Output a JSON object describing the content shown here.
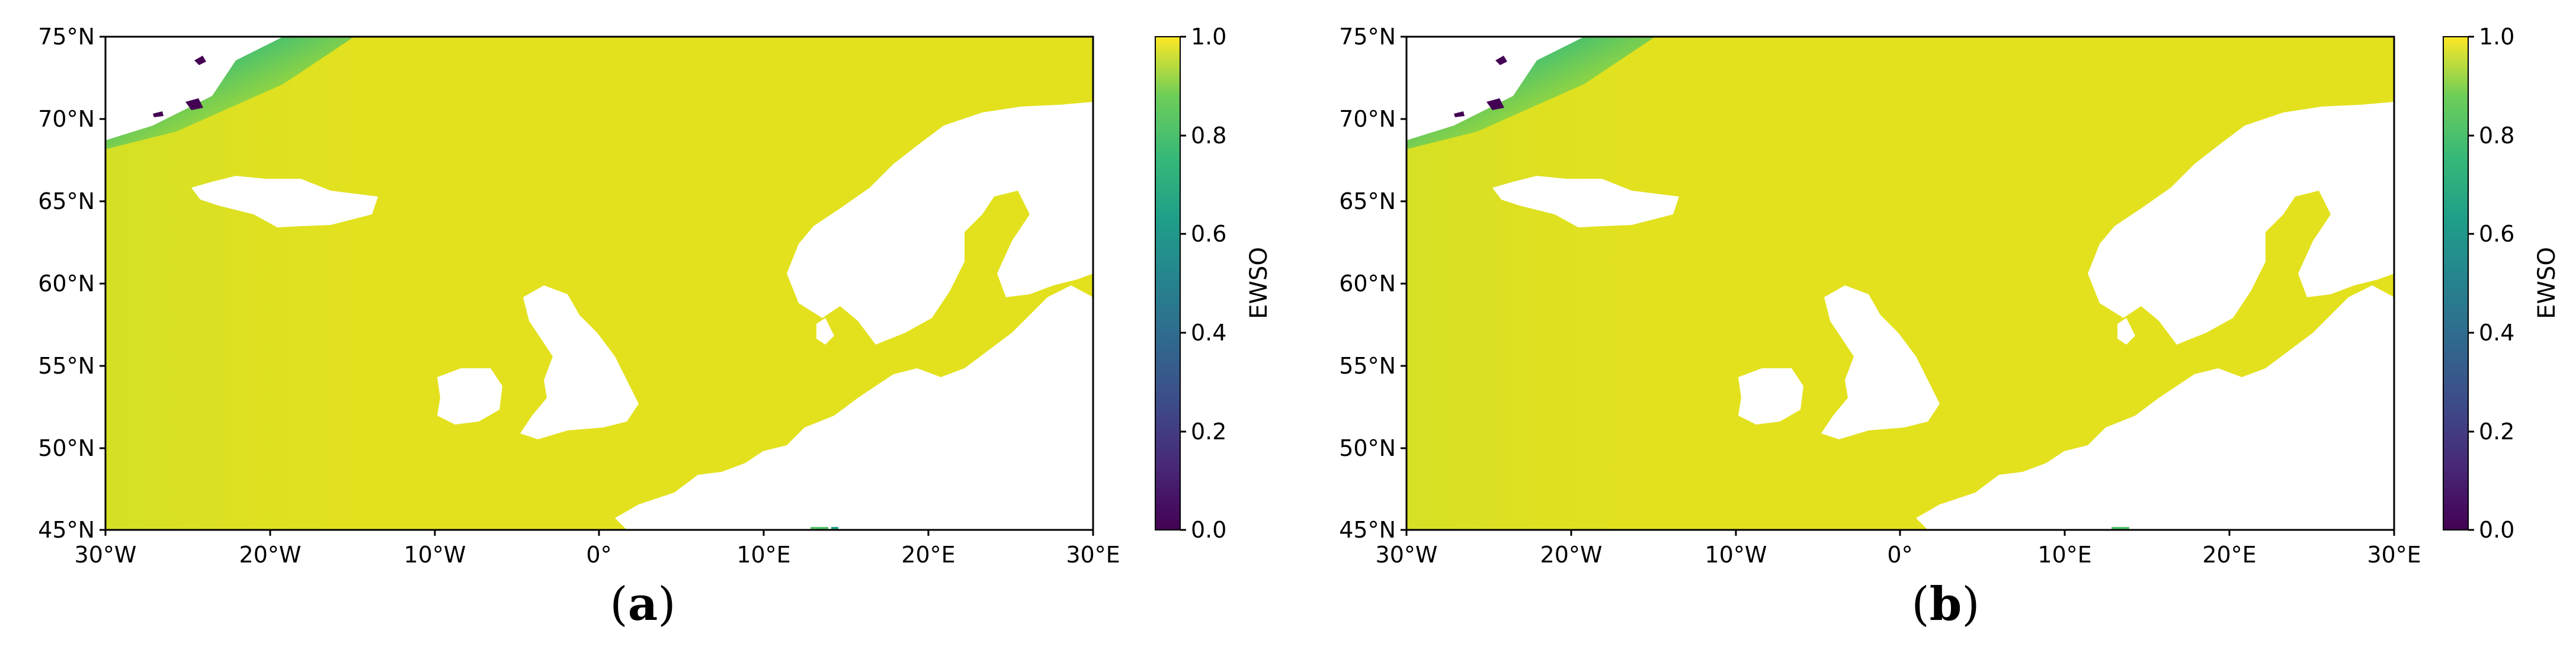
{
  "colors": {
    "ocean": "#e3e11e",
    "ocean_dark": "#d8e022",
    "land": "#ffffff",
    "green": "#52c569",
    "teal": "#20a486",
    "purple": "#440154",
    "frame": "#000000"
  },
  "colormap": "viridis",
  "panels": [
    {
      "id": "a",
      "caption_open": "(",
      "caption_letter": "a",
      "caption_close": ")",
      "colorbar_label": "EWSO",
      "colorbar_ticks": [
        "1.0",
        "0.8",
        "0.6",
        "0.4",
        "0.2",
        "0.0"
      ],
      "lat_labels": [
        "75°N",
        "70°N",
        "65°N",
        "60°N",
        "55°N",
        "50°N",
        "45°N"
      ],
      "lon_labels": [
        "30°W",
        "20°W",
        "10°W",
        "0°",
        "10°E",
        "20°E",
        "30°E"
      ]
    },
    {
      "id": "b",
      "caption_open": "(",
      "caption_letter": "b",
      "caption_close": ")",
      "colorbar_label": "EWSO",
      "colorbar_ticks": [
        "1.0",
        "0.8",
        "0.6",
        "0.4",
        "0.2",
        "0.0"
      ],
      "lat_labels": [
        "75°N",
        "70°N",
        "65°N",
        "60°N",
        "55°N",
        "50°N",
        "45°N"
      ],
      "lon_labels": [
        "30°W",
        "20°W",
        "10°W",
        "0°",
        "10°E",
        "20°E",
        "30°E"
      ]
    }
  ],
  "chart_data": [
    {
      "type": "heatmap",
      "variable": "EWSO",
      "lat_range": [
        45,
        75
      ],
      "lon_range": [
        -30,
        30
      ],
      "colorbar_range": [
        0.0,
        1.0
      ],
      "dominant_value": 0.95
    },
    {
      "type": "heatmap",
      "variable": "EWSO",
      "lat_range": [
        45,
        75
      ],
      "lon_range": [
        -30,
        30
      ],
      "colorbar_range": [
        0.0,
        1.0
      ],
      "dominant_value": 0.95
    }
  ]
}
